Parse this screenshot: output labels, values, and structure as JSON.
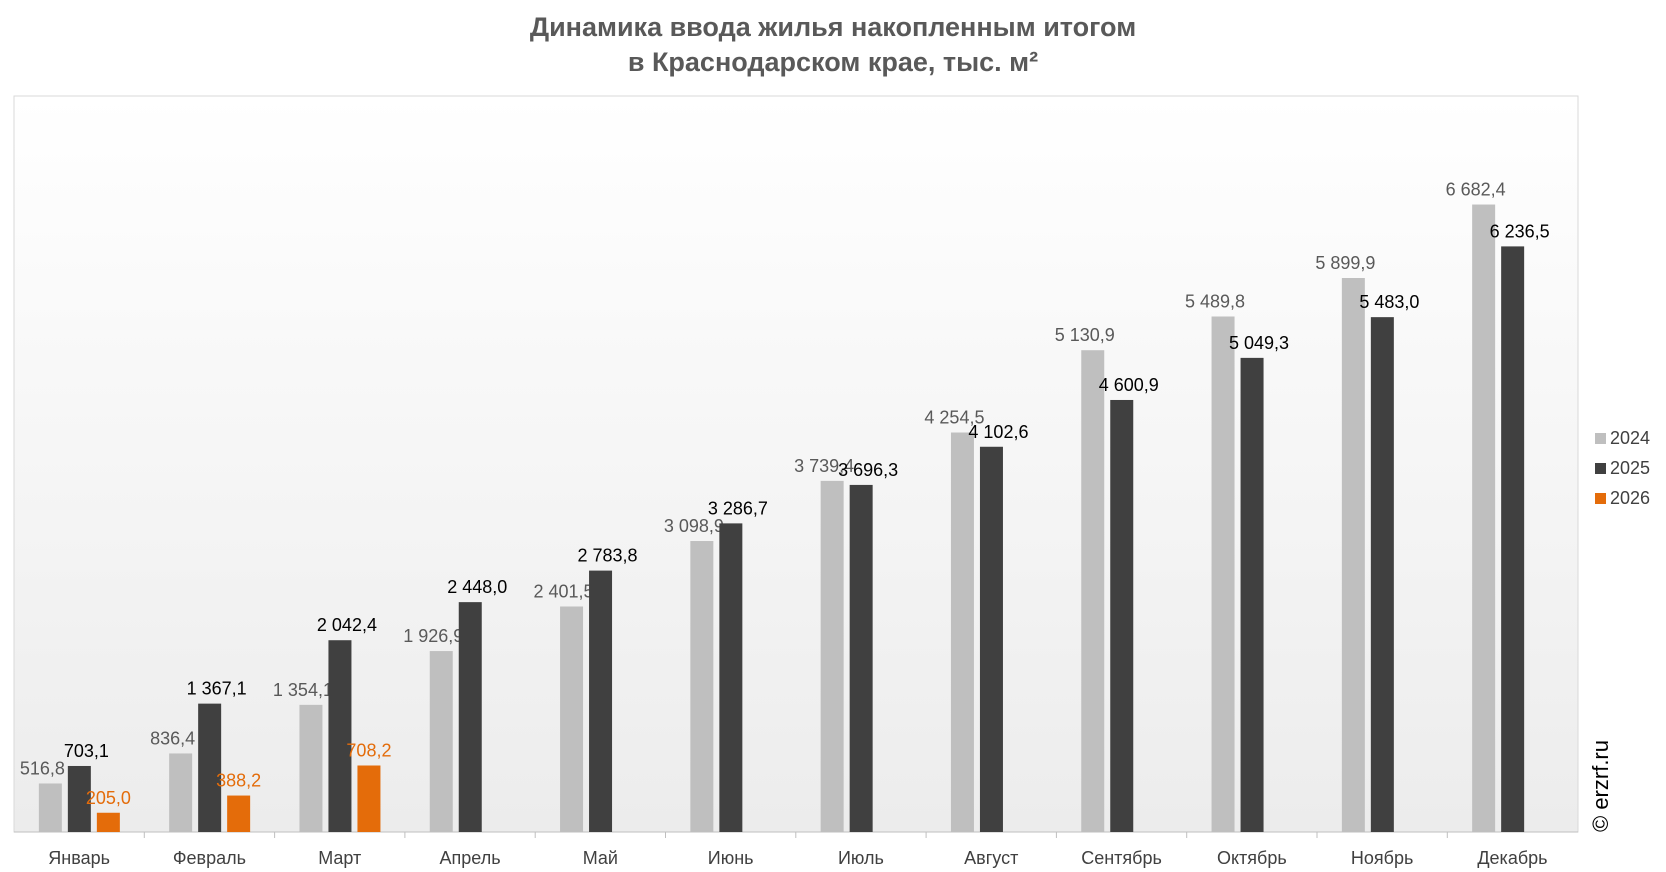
{
  "title_line1": "Динамика ввода жилья накопленным итогом",
  "title_line2": "в Краснодарском крае, тыс. м²",
  "watermark": "© erzrf.ru",
  "colors": {
    "s2024": "#bfbfbf",
    "s2025": "#404040",
    "s2026": "#e46c0a",
    "label2024": "#595959",
    "label2025": "#000000",
    "label2026": "#e46c0a",
    "axis_text": "#404040",
    "plot_border": "#d9d9d9"
  },
  "chart_data": {
    "type": "bar",
    "title": "Динамика ввода жилья накопленным итогом в Краснодарском крае, тыс. м²",
    "xlabel": "",
    "ylabel": "",
    "ylim": [
      0,
      7400
    ],
    "grid": false,
    "legend_position": "right",
    "categories": [
      "Январь",
      "Февраль",
      "Март",
      "Апрель",
      "Май",
      "Июнь",
      "Июль",
      "Август",
      "Сентябрь",
      "Октябрь",
      "Ноябрь",
      "Декабрь"
    ],
    "series": [
      {
        "name": "2024",
        "values": [
          516.8,
          836.4,
          1354.1,
          1926.9,
          2401.5,
          3098.9,
          3739.4,
          4254.5,
          5130.9,
          5489.8,
          5899.9,
          6682.4
        ],
        "labels": [
          "516,8",
          "836,4",
          "1 354,1",
          "1 926,9",
          "2 401,5",
          "3 098,9",
          "3 739,4",
          "4 254,5",
          "5 130,9",
          "5 489,8",
          "5 899,9",
          "6 682,4"
        ]
      },
      {
        "name": "2025",
        "values": [
          703.1,
          1367.1,
          2042.4,
          2448.0,
          2783.8,
          3286.7,
          3696.3,
          4102.6,
          4600.9,
          5049.3,
          5483.0,
          6236.5
        ],
        "labels": [
          "703,1",
          "1 367,1",
          "2 042,4",
          "2 448,0",
          "2 783,8",
          "3 286,7",
          "3 696,3",
          "4 102,6",
          "4 600,9",
          "5 049,3",
          "5 483,0",
          "6 236,5"
        ]
      },
      {
        "name": "2026",
        "values": [
          205.0,
          388.2,
          708.2,
          null,
          null,
          null,
          null,
          null,
          null,
          null,
          null,
          null
        ],
        "labels": [
          "205,0",
          "388,2",
          "708,2",
          "",
          "",
          "",
          "",
          "",
          "",
          "",
          "",
          ""
        ]
      }
    ]
  }
}
